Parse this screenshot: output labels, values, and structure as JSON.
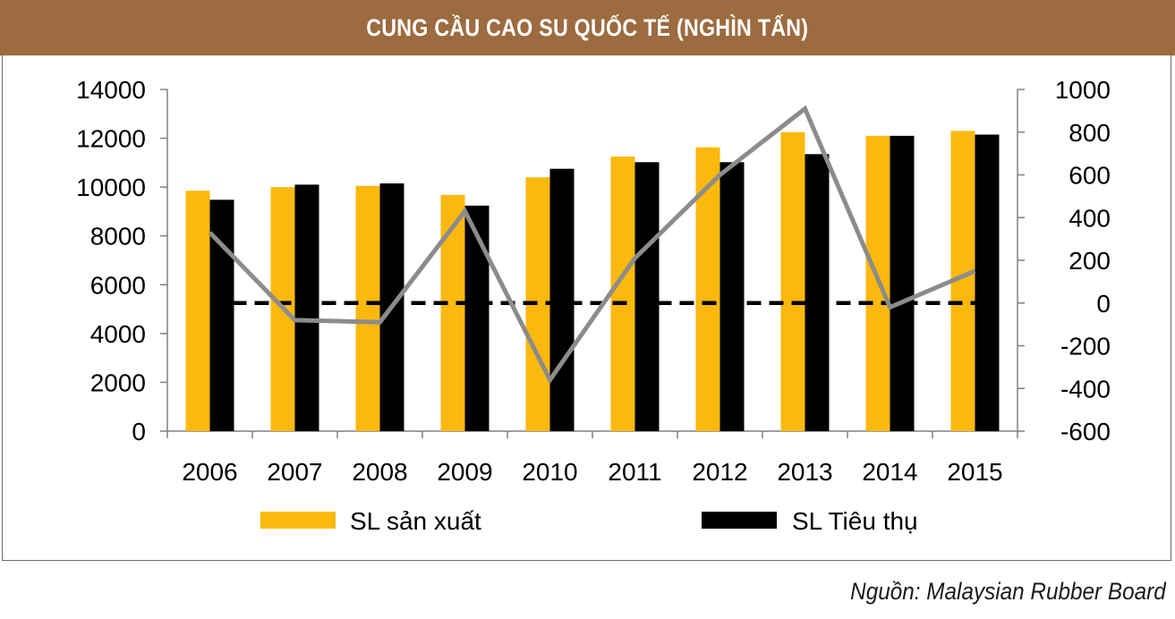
{
  "header": {
    "title": "CUNG CẦU CAO SU QUỐC TẾ (NGHÌN TẤN)"
  },
  "footer": {
    "source": "Nguồn: Malaysian Rubber Board"
  },
  "colors": {
    "title_bar": "#9c6b3f",
    "production": "#fbb90f",
    "consumption": "#000000",
    "balance_line": "#8c8c8c",
    "zero_line": "#000000"
  },
  "chart_data": {
    "type": "bar",
    "categories": [
      "2006",
      "2007",
      "2008",
      "2009",
      "2010",
      "2011",
      "2012",
      "2013",
      "2014",
      "2015"
    ],
    "ylim": [
      0,
      14000
    ],
    "y_ticks": [
      "14000",
      "12000",
      "10000",
      "8000",
      "6000",
      "4000",
      "2000",
      "0"
    ],
    "y2lim": [
      -600,
      1000
    ],
    "y2_ticks": [
      "1000",
      "800",
      "600",
      "400",
      "200",
      "0",
      "-200",
      "-400",
      "-600"
    ],
    "series": [
      {
        "name": "SL sản xuất",
        "axis": "left",
        "type": "bar",
        "values": [
          9850,
          10000,
          10050,
          9680,
          10400,
          11250,
          11630,
          12250,
          12100,
          12300
        ]
      },
      {
        "name": "SL Tiêu thụ",
        "axis": "left",
        "type": "bar",
        "values": [
          9480,
          10100,
          10150,
          9240,
          10750,
          11020,
          11020,
          11350,
          12100,
          12150
        ]
      },
      {
        "axis": "right",
        "type": "line",
        "values": [
          330,
          -80,
          -90,
          430,
          -360,
          210,
          600,
          910,
          -20,
          150
        ]
      },
      {
        "axis": "right",
        "type": "line",
        "style": "dashed",
        "values": [
          0,
          0,
          0,
          0,
          0,
          0,
          0,
          0,
          0,
          0
        ]
      }
    ],
    "legend_position": "bottom",
    "grid": false
  }
}
